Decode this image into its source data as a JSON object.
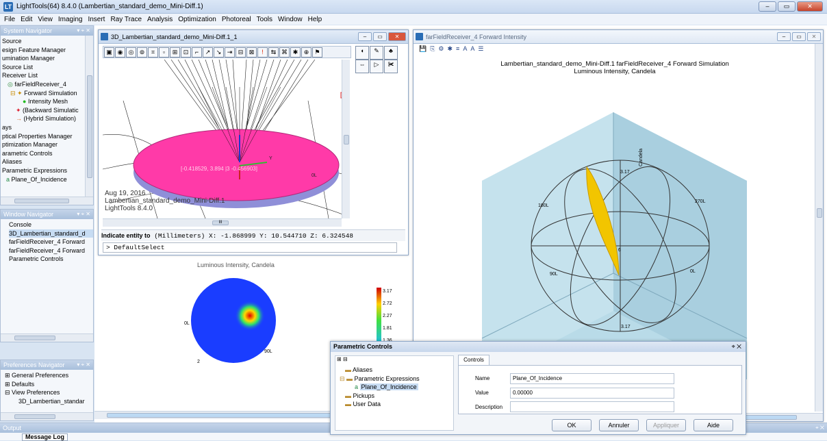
{
  "app": {
    "title": "LightTools(64) 8.4.0  (Lambertian_standard_demo_Mini-Diff.1)",
    "icon": "LT",
    "win_buttons": [
      "–",
      "▭",
      "✕"
    ]
  },
  "menu": [
    "File",
    "Edit",
    "View",
    "Imaging",
    "Insert",
    "Ray Trace",
    "Analysis",
    "Optimization",
    "Photoreal",
    "Tools",
    "Window",
    "Help"
  ],
  "system_navigator": {
    "title": "System Navigator",
    "items": [
      "Source",
      "esign Feature Manager",
      "umination Manager",
      "Source List",
      "Receiver List",
      "farFieldReceiver_4",
      "Forward Simulation",
      "Intensity Mesh",
      "(Backward Simulatic",
      "(Hybrid Simulation)",
      "ays",
      "ptical Properties Manager",
      "ptimization Manager",
      "arametric Controls",
      "Aliases",
      "Parametric Expressions",
      "Plane_Of_Incidence"
    ]
  },
  "window_navigator": {
    "title": "Window Navigator",
    "items": [
      "Console",
      "3D_Lambertian_standard_d",
      "farFieldReceiver_4 Forward",
      "farFieldReceiver_4 Forward",
      "Parametric Controls"
    ]
  },
  "preferences_navigator": {
    "title": "Preferences Navigator",
    "items": [
      "General Preferences",
      "Defaults",
      "View Preferences",
      "3D_Lambertian_standar"
    ]
  },
  "output_panel": {
    "title": "Output",
    "tab": "Message Log"
  },
  "view3d": {
    "title": "3D_Lambertian_standard_demo_Mini-Diff.1_1",
    "date": "Aug 19, 2016",
    "model": "Lambertian_standard_demo_Mini-Diff.1",
    "version": "LightTools 8.4.0",
    "coord_readout": "[-0.418529, 3.894 |3 -0.456903]",
    "axis_y": "Y",
    "label_0l": "0L",
    "console_prompt_label": "Indicate entity to",
    "console_status": "(Millimeters) X:   -1.868999 Y:   10.544710 Z:    6.324548",
    "console_input": "DefaultSelect",
    "scroll_label": "III"
  },
  "rear_chart": {
    "subtitle": "Luminous Intensity, Candela",
    "label_0l": "0L",
    "label_90l": "90L",
    "label_2": "2",
    "legend": [
      "3.17",
      "2.72",
      "2.27",
      "1.81",
      "1.36"
    ]
  },
  "forward_intensity": {
    "title": "farFieldReceiver_4 Forward Intensity",
    "toolbar": [
      "💾",
      "⎘",
      "⚙",
      "✱",
      "≡",
      "A",
      "A",
      "☰"
    ],
    "chart_title": "Lambertian_standard_demo_Mini-Diff.1 farFieldReceiver_4 Forward Simulation",
    "chart_subtitle": "Luminous Intensity, Candela",
    "labels": {
      "candela": "Candela",
      "top_value": "3.17",
      "bottom_value": "3.17",
      "l180": "180L",
      "l270": "270L",
      "l0": "0L",
      "l90": "90L",
      "center": "6"
    }
  },
  "parametric_controls": {
    "title": "Parametric Controls",
    "tree": [
      "Aliases",
      "Parametric Expressions",
      "Plane_Of_Incidence",
      "Pickups",
      "User Data"
    ],
    "tab": "Controls",
    "name_label": "Name",
    "name_value": "Plane_Of_Incidence",
    "value_label": "Value",
    "value_value": "0.00000",
    "description_label": "Description",
    "description_value": "",
    "buttons": {
      "ok": "OK",
      "cancel": "Annuler",
      "apply": "Appliquer",
      "help": "Aide"
    }
  },
  "colors": {
    "disk": "#ff3aa8",
    "lobe": "#f2c500",
    "cube": "#b9dbe8",
    "sphere": "#1a3dff"
  }
}
